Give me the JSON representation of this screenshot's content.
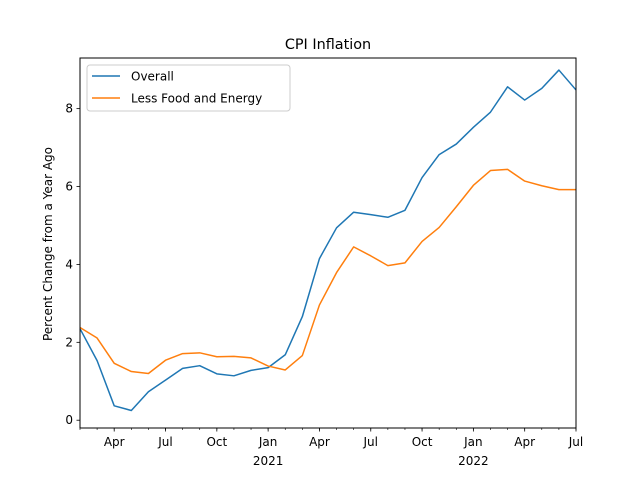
{
  "chart_data": {
    "type": "line",
    "title": "CPI Inflation",
    "xlabel": "",
    "ylabel": "Percent Change from a Year Ago",
    "x": [
      "2020-02",
      "2020-03",
      "2020-04",
      "2020-05",
      "2020-06",
      "2020-07",
      "2020-08",
      "2020-09",
      "2020-10",
      "2020-11",
      "2020-12",
      "2021-01",
      "2021-02",
      "2021-03",
      "2021-04",
      "2021-05",
      "2021-06",
      "2021-07",
      "2021-08",
      "2021-09",
      "2021-10",
      "2021-11",
      "2021-12",
      "2022-01",
      "2022-02",
      "2022-03",
      "2022-04",
      "2022-05",
      "2022-06",
      "2022-07"
    ],
    "xlim": [
      "2020-02",
      "2022-07"
    ],
    "ylim": [
      -0.2,
      9.3
    ],
    "yticks": [
      0,
      2,
      4,
      6,
      8
    ],
    "xticks": [
      {
        "x": "2020-04",
        "label": "Apr",
        "sublabel": ""
      },
      {
        "x": "2020-07",
        "label": "Jul",
        "sublabel": ""
      },
      {
        "x": "2020-10",
        "label": "Oct",
        "sublabel": ""
      },
      {
        "x": "2021-01",
        "label": "Jan",
        "sublabel": "2021"
      },
      {
        "x": "2021-04",
        "label": "Apr",
        "sublabel": ""
      },
      {
        "x": "2021-07",
        "label": "Jul",
        "sublabel": ""
      },
      {
        "x": "2021-10",
        "label": "Oct",
        "sublabel": ""
      },
      {
        "x": "2022-01",
        "label": "Jan",
        "sublabel": "2022"
      },
      {
        "x": "2022-04",
        "label": "Apr",
        "sublabel": ""
      },
      {
        "x": "2022-07",
        "label": "Jul",
        "sublabel": ""
      }
    ],
    "legend_position": "top-left",
    "grid": false,
    "series": [
      {
        "name": "Overall",
        "color": "#1f77b4",
        "values": [
          2.35,
          1.53,
          0.37,
          0.25,
          0.73,
          1.03,
          1.33,
          1.4,
          1.19,
          1.14,
          1.28,
          1.35,
          1.68,
          2.66,
          4.15,
          4.94,
          5.34,
          5.28,
          5.21,
          5.39,
          6.23,
          6.82,
          7.09,
          7.52,
          7.91,
          8.56,
          8.22,
          8.52,
          8.99,
          8.48
        ]
      },
      {
        "name": "Less Food and Energy",
        "color": "#ff7f0e",
        "values": [
          2.38,
          2.11,
          1.46,
          1.25,
          1.2,
          1.54,
          1.71,
          1.73,
          1.63,
          1.64,
          1.6,
          1.39,
          1.29,
          1.66,
          2.96,
          3.79,
          4.45,
          4.22,
          3.97,
          4.04,
          4.59,
          4.95,
          5.48,
          6.03,
          6.41,
          6.44,
          6.14,
          6.02,
          5.92,
          5.92
        ]
      }
    ]
  }
}
